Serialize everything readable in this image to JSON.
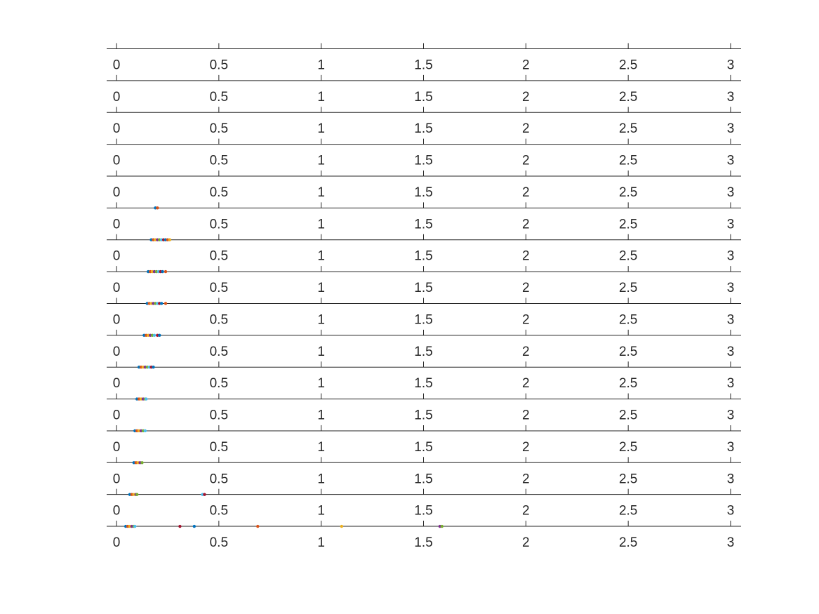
{
  "chart_data": {
    "type": "scatter",
    "layout": "stacked strip plots",
    "xlim": [
      0,
      3
    ],
    "x_ticks": [
      0,
      0.5,
      1,
      1.5,
      2,
      2.5,
      3
    ],
    "x_tick_labels": [
      "0",
      "0.5",
      "1",
      "1.5",
      "2",
      "2.5",
      "3"
    ],
    "title": "",
    "xlabel": "",
    "ylabel": "",
    "grid": false,
    "legend": "none",
    "palette": [
      "#0072BD",
      "#D95319",
      "#EDB120",
      "#7E2F8E",
      "#77AC30",
      "#4DBEEE",
      "#A2142F"
    ],
    "strips": [
      {
        "points": []
      },
      {
        "points": []
      },
      {
        "points": []
      },
      {
        "points": []
      },
      {
        "points": [
          0.19,
          0.2
        ]
      },
      {
        "points": [
          0.17,
          0.18,
          0.19,
          0.2,
          0.21,
          0.22,
          0.23,
          0.24,
          0.25,
          0.26
        ]
      },
      {
        "points": [
          0.155,
          0.165,
          0.175,
          0.185,
          0.195,
          0.205,
          0.215,
          0.225,
          0.24
        ]
      },
      {
        "points": [
          0.15,
          0.16,
          0.17,
          0.18,
          0.19,
          0.2,
          0.21,
          0.22,
          0.24
        ]
      },
      {
        "points": [
          0.135,
          0.145,
          0.155,
          0.165,
          0.175,
          0.185,
          0.2,
          0.21
        ]
      },
      {
        "points": [
          0.11,
          0.12,
          0.13,
          0.14,
          0.15,
          0.16,
          0.17,
          0.18
        ]
      },
      {
        "points": [
          0.1,
          0.11,
          0.12,
          0.13,
          0.14,
          0.145
        ]
      },
      {
        "points": [
          0.09,
          0.1,
          0.11,
          0.12,
          0.13,
          0.14
        ]
      },
      {
        "points": [
          0.085,
          0.095,
          0.105,
          0.115,
          0.125
        ]
      },
      {
        "points": [
          0.065,
          0.075,
          0.085,
          0.095,
          0.1,
          0.42,
          0.43
        ]
      },
      {
        "points": [
          0.045,
          0.055,
          0.065,
          0.075,
          0.085,
          0.09,
          0.31,
          0.38,
          0.69,
          1.1,
          1.58,
          1.59
        ]
      }
    ]
  }
}
